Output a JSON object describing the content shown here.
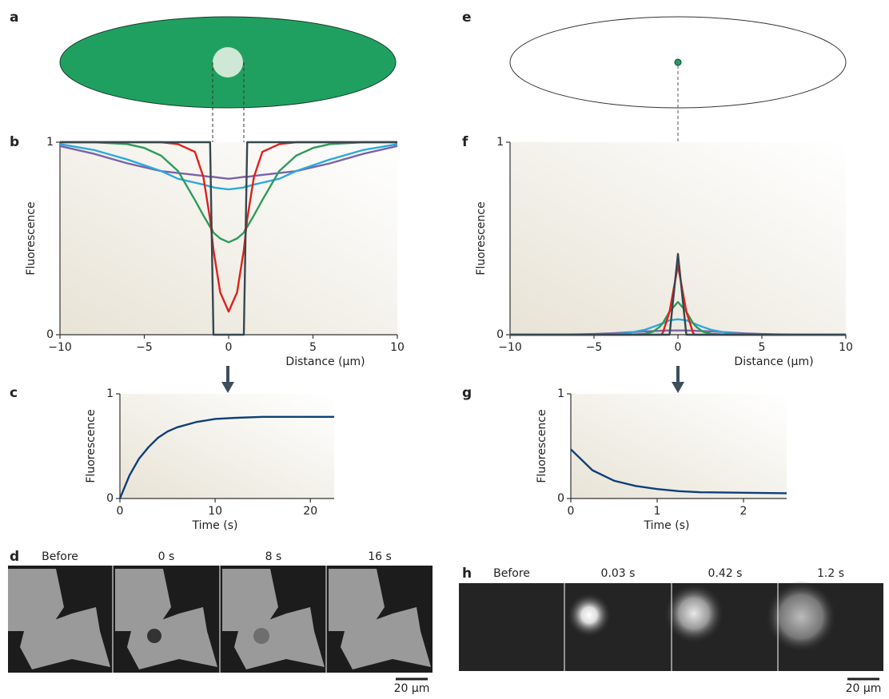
{
  "panel_labels": [
    "a",
    "b",
    "c",
    "d",
    "e",
    "f",
    "g",
    "h"
  ],
  "chart_data": [
    {
      "type": "line",
      "xlabel": "Distance (μm)",
      "ylabel": "Fluorescence",
      "x": [
        -10,
        -8,
        -6,
        -5,
        -4,
        -3,
        -2,
        -1.5,
        -1.1,
        -1,
        -0.9,
        -0.5,
        0,
        0.5,
        0.9,
        1,
        1.1,
        1.5,
        2,
        3,
        4,
        5,
        6,
        8,
        10
      ],
      "xlim": [
        -10,
        10
      ],
      "ylim": [
        0,
        1
      ],
      "xticks": [
        {
          "value": -10,
          "label": "−10"
        },
        {
          "value": -5,
          "label": "−5"
        },
        0,
        5,
        10
      ],
      "yticks": [
        0,
        1
      ],
      "series": [
        {
          "color": "#7b62a8",
          "values": [
            0.98,
            0.94,
            0.89,
            0.87,
            0.85,
            0.84,
            0.83,
            0.825,
            0.82,
            0.82,
            0.82,
            0.815,
            0.81,
            0.815,
            0.82,
            0.82,
            0.82,
            0.825,
            0.83,
            0.84,
            0.85,
            0.87,
            0.89,
            0.94,
            0.98
          ]
        },
        {
          "color": "#2ba9dc",
          "values": [
            0.99,
            0.96,
            0.91,
            0.88,
            0.85,
            0.81,
            0.79,
            0.78,
            0.77,
            0.77,
            0.765,
            0.76,
            0.755,
            0.76,
            0.765,
            0.77,
            0.77,
            0.78,
            0.79,
            0.81,
            0.85,
            0.88,
            0.91,
            0.96,
            0.99
          ]
        },
        {
          "color": "#2e9b5a",
          "values": [
            1,
            1,
            0.99,
            0.97,
            0.93,
            0.85,
            0.7,
            0.62,
            0.56,
            0.55,
            0.53,
            0.5,
            0.48,
            0.5,
            0.53,
            0.55,
            0.56,
            0.62,
            0.7,
            0.85,
            0.93,
            0.97,
            0.99,
            1,
            1
          ]
        },
        {
          "color": "#e0201b",
          "values": [
            1,
            1,
            1,
            1,
            1,
            0.99,
            0.95,
            0.82,
            0.6,
            0.52,
            0.44,
            0.22,
            0.12,
            0.22,
            0.44,
            0.52,
            0.6,
            0.82,
            0.95,
            0.99,
            1,
            1,
            1,
            1,
            1
          ]
        },
        {
          "color": "#37474f",
          "values": [
            1,
            1,
            1,
            1,
            1,
            1,
            1,
            1,
            1,
            0.5,
            0,
            0,
            0,
            0,
            0,
            0.5,
            1,
            1,
            1,
            1,
            1,
            1,
            1,
            1,
            1
          ]
        }
      ]
    },
    {
      "type": "line",
      "xlabel": "Distance (μm)",
      "ylabel": "Fluorescence",
      "x": [
        -10,
        -8,
        -6,
        -5,
        -4,
        -3,
        -2,
        -1.5,
        -1.1,
        -1,
        -0.9,
        -0.5,
        0,
        0.5,
        0.9,
        1,
        1.1,
        1.5,
        2,
        3,
        4,
        5,
        6,
        8,
        10
      ],
      "xlim": [
        -10,
        10
      ],
      "ylim": [
        0,
        1
      ],
      "xticks": [
        {
          "value": -10,
          "label": "−10"
        },
        {
          "value": -5,
          "label": "−5"
        },
        0,
        5,
        10
      ],
      "yticks": [
        0,
        1
      ],
      "series": [
        {
          "color": "#7b62a8",
          "values": [
            0,
            0,
            0.002,
            0.004,
            0.007,
            0.012,
            0.017,
            0.019,
            0.02,
            0.021,
            0.021,
            0.022,
            0.022,
            0.022,
            0.021,
            0.021,
            0.02,
            0.019,
            0.017,
            0.012,
            0.007,
            0.004,
            0.002,
            0,
            0
          ]
        },
        {
          "color": "#2ba9dc",
          "values": [
            0,
            0,
            0,
            0,
            0.002,
            0.008,
            0.025,
            0.04,
            0.053,
            0.057,
            0.06,
            0.075,
            0.08,
            0.075,
            0.06,
            0.057,
            0.053,
            0.04,
            0.025,
            0.008,
            0.002,
            0,
            0,
            0,
            0
          ]
        },
        {
          "color": "#2e9b5a",
          "values": [
            0,
            0,
            0,
            0,
            0,
            0,
            0.004,
            0.015,
            0.04,
            0.05,
            0.06,
            0.12,
            0.17,
            0.12,
            0.06,
            0.05,
            0.04,
            0.015,
            0.004,
            0,
            0,
            0,
            0,
            0,
            0
          ]
        },
        {
          "color": "#e0201b",
          "values": [
            0,
            0,
            0,
            0,
            0,
            0,
            0,
            0,
            0,
            0,
            0.01,
            0.12,
            0.36,
            0.12,
            0.01,
            0,
            0,
            0,
            0,
            0,
            0,
            0,
            0,
            0,
            0
          ]
        },
        {
          "color": "#37474f",
          "values": [
            0,
            0,
            0,
            0,
            0,
            0,
            0,
            0,
            0,
            0,
            0,
            0,
            0.42,
            0,
            0,
            0,
            0,
            0,
            0,
            0,
            0,
            0,
            0,
            0,
            0
          ]
        }
      ]
    },
    {
      "type": "line",
      "xlabel": "Time (s)",
      "ylabel": "Fluorescence",
      "x": [
        0,
        1,
        2,
        3,
        4,
        5,
        6,
        8,
        10,
        12,
        15,
        18,
        22.5
      ],
      "xlim": [
        0,
        22.5
      ],
      "ylim": [
        0,
        1
      ],
      "xticks": [
        0,
        10,
        20
      ],
      "yticks": [
        0,
        1
      ],
      "series": [
        {
          "color": "#0d3f7a",
          "values": [
            0,
            0.22,
            0.38,
            0.49,
            0.58,
            0.64,
            0.68,
            0.73,
            0.76,
            0.77,
            0.78,
            0.78,
            0.78
          ]
        }
      ]
    },
    {
      "type": "line",
      "xlabel": "Time (s)",
      "ylabel": "Fluorescence",
      "x": [
        0,
        0.25,
        0.5,
        0.75,
        1,
        1.25,
        1.5,
        2,
        2.5
      ],
      "xlim": [
        0,
        2.5
      ],
      "ylim": [
        0,
        1
      ],
      "xticks": [
        0,
        1,
        2
      ],
      "yticks": [
        0,
        1
      ],
      "series": [
        {
          "color": "#0d3f7a",
          "values": [
            0.47,
            0.27,
            0.17,
            0.12,
            0.09,
            0.07,
            0.06,
            0.055,
            0.05
          ]
        }
      ]
    }
  ],
  "image_strips": [
    {
      "labels": [
        "Before",
        "0 s",
        "8 s",
        "16 s"
      ],
      "scale_bar": "20 μm"
    },
    {
      "labels": [
        "Before",
        "0.03 s",
        "0.42 s",
        "1.2 s"
      ],
      "scale_bar": "20 μm"
    }
  ]
}
